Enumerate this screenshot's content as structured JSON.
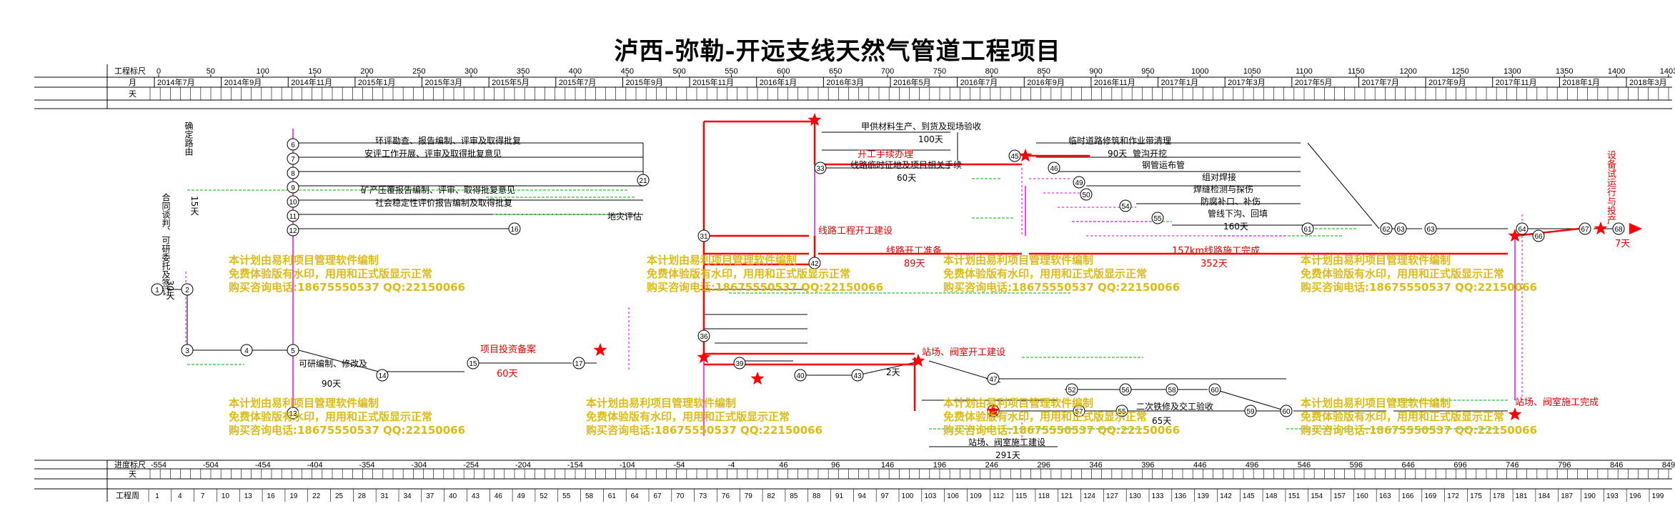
{
  "title": "泸西-弥勒-开远支线天然气管道工程项目",
  "header": {
    "scale_label": "工程标尺",
    "month_label": "月",
    "day_label": "天",
    "scale_ticks": [
      "0",
      "50",
      "100",
      "150",
      "200",
      "250",
      "300",
      "350",
      "400",
      "450",
      "500",
      "550",
      "600",
      "650",
      "700",
      "750",
      "800",
      "850",
      "900",
      "950",
      "1000",
      "1050",
      "1100",
      "1150",
      "1200",
      "1250",
      "1300",
      "1350",
      "1400",
      "1403"
    ],
    "months": [
      "2014年7月",
      "2014年9月",
      "2014年11月",
      "2015年1月",
      "2015年3月",
      "2015年5月",
      "2015年7月",
      "2015年9月",
      "2015年11月",
      "2016年1月",
      "2016年3月",
      "2016年5月",
      "2016年7月",
      "2016年9月",
      "2016年11月",
      "2017年1月",
      "2017年3月",
      "2017年5月",
      "2017年7月",
      "2017年9月",
      "2017年11月",
      "2018年1月",
      "2018年3月"
    ]
  },
  "footer": {
    "progress_label": "进度标尺",
    "day_label": "天",
    "week_label": "工程周",
    "progress_ticks": [
      "-554",
      "-504",
      "-454",
      "-404",
      "-354",
      "-304",
      "-254",
      "-204",
      "-154",
      "-104",
      "-54",
      "-4",
      "46",
      "96",
      "146",
      "196",
      "246",
      "296",
      "346",
      "396",
      "446",
      "496",
      "546",
      "596",
      "646",
      "696",
      "746",
      "796",
      "846",
      "849"
    ],
    "weeks": [
      "1",
      "4",
      "7",
      "10",
      "13",
      "16",
      "19",
      "22",
      "25",
      "28",
      "31",
      "34",
      "37",
      "40",
      "43",
      "46",
      "49",
      "52",
      "55",
      "58",
      "61",
      "64",
      "67",
      "70",
      "73",
      "76",
      "79",
      "82",
      "85",
      "88",
      "91",
      "94",
      "97",
      "100",
      "103",
      "106",
      "109",
      "112",
      "115",
      "118",
      "121",
      "124",
      "127",
      "130",
      "133",
      "136",
      "139",
      "142",
      "145",
      "148",
      "151",
      "154",
      "157",
      "160",
      "163",
      "166",
      "169",
      "172",
      "175",
      "178",
      "181",
      "184",
      "187",
      "190",
      "193",
      "196",
      "199"
    ]
  },
  "watermark": {
    "line1": "本计划由易利项目管理软件编制",
    "line2": "免费体验版有水印，用用和正式版显示正常",
    "line3": "购买咨询电话:18675550537 QQ:22150066"
  },
  "tasks": {
    "t1": "项目投资备案",
    "t1_dur": "60天",
    "t2": "开工手续办理",
    "t3": "线路工程开工建设",
    "t4": "线路开工准备",
    "t4_dur": "89天",
    "t5": "157km线路施工完成",
    "t5_dur": "352天",
    "t6": "站场、阀室开工建设",
    "t7": "站场、阀室施工完成",
    "t8": "甲供材料生产、到货及现场验收",
    "t8_dur": "100天",
    "t9": "临时道路修筑和作业带清理",
    "t9_dur": "90天",
    "t10": "管沟开挖",
    "t11": "钢管运布管",
    "t12": "组对焊接",
    "t13": "焊缝检测与探伤",
    "t14": "防腐补口、补伤",
    "t15": "管线下沟、回填",
    "t15_dur": "160天",
    "t16": "站场、阀室施工建设",
    "t16_dur": "291天",
    "t17": "二次铁修及交工验收",
    "t17_dur": "65天",
    "t18": "可研编制、修改及",
    "t18_dur": "90天",
    "t19": "环评勘查、报告编制、评审及取得批复",
    "t20": "安评工作开展、评审及取得批复意见",
    "t21": "矿产压覆报告编制、评审、取得批复意见",
    "t22": "社会稳定性评价报告编制及取得批复",
    "t23": "地灾评估",
    "t24": "确定路由",
    "t24_dur": "15天",
    "t25": "合同谈判、可研委托及签订",
    "t25_dur": "30天",
    "t26": "设备试运行与投产",
    "t26_dur": "7天",
    "t27": "线路临时征地及项目相关手续",
    "t27_dur": "60天",
    "t28": "2天"
  }
}
